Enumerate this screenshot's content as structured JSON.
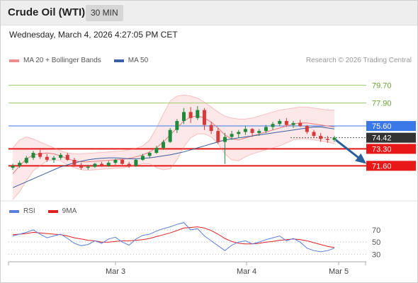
{
  "header": {
    "title": "Crude Oil (WTI)",
    "timeframe": "30 MIN",
    "datetime": "Wednesday, March 4, 2026 4:27:05 PM CET"
  },
  "legend_main": [
    {
      "label": "MA 20 + Bollinger Bands",
      "color": "#f08c8c"
    },
    {
      "label": "MA 50",
      "color": "#3a5fa0"
    }
  ],
  "credit": "Research © 2026 Trading Central",
  "legend_rsi": [
    {
      "label": "RSI",
      "color": "#5b7fe0"
    },
    {
      "label": "9MA",
      "color": "#e02020"
    }
  ],
  "colors": {
    "up": "#1f8a3b",
    "down": "#d63a3a",
    "resistance": "#99cc66",
    "support": "#e81818",
    "pivot": "#3a78e8",
    "current": "#333333",
    "arrow": "#2a5f9e"
  },
  "chart_data": [
    {
      "type": "line",
      "title": "",
      "ylim": [
        68.5,
        81.5
      ],
      "x_ticks": [
        "Mar 3",
        "Mar 4",
        "Mar 5"
      ],
      "levels": [
        {
          "label": "79.70",
          "value": 79.7,
          "kind": "resistance"
        },
        {
          "label": "77.90",
          "value": 77.9,
          "kind": "resistance"
        },
        {
          "label": "75.60",
          "value": 75.6,
          "kind": "pivot"
        },
        {
          "label": "74.42",
          "value": 74.42,
          "kind": "current"
        },
        {
          "label": "73.30",
          "value": 73.3,
          "kind": "support"
        },
        {
          "label": "71.60",
          "value": 71.6,
          "kind": "support"
        }
      ],
      "series": [
        {
          "name": "MA 50",
          "values": [
            69.4,
            69.7,
            70.0,
            70.3,
            70.6,
            70.9,
            71.2,
            71.5,
            71.7,
            71.9,
            72.05,
            72.2,
            72.3,
            72.35,
            72.4,
            72.4,
            72.35,
            72.3,
            72.3,
            72.35,
            72.4,
            72.5,
            72.6,
            72.7,
            72.85,
            73.0,
            73.2,
            73.4,
            73.6,
            73.8,
            74.0,
            74.2,
            74.3,
            74.4,
            74.5,
            74.6,
            74.7,
            74.8,
            74.9,
            75.0,
            75.1,
            75.2,
            75.3,
            75.4,
            75.5,
            75.5,
            75.4,
            75.3
          ]
        },
        {
          "name": "MA 20",
          "values": [
            70.8,
            71.6,
            72.3,
            72.7,
            72.8,
            72.9,
            72.8,
            72.6,
            72.3,
            72.1,
            72.0,
            72.0,
            72.05,
            72.1,
            72.15,
            72.2,
            72.25,
            72.35,
            72.5,
            72.7,
            73.0,
            73.4,
            74.0,
            74.7,
            75.4,
            76.1,
            76.5,
            76.6,
            76.4,
            76.0,
            75.4,
            74.7,
            74.3,
            74.2,
            74.4,
            74.6,
            74.8,
            75.0,
            75.2,
            75.4,
            75.6,
            75.8,
            75.9,
            75.9,
            75.8,
            75.7,
            75.6,
            75.5
          ]
        },
        {
          "name": "BB upper",
          "values": [
            73.4,
            74.2,
            74.5,
            74.3,
            74.0,
            73.7,
            73.4,
            73.1,
            72.9,
            72.8,
            72.8,
            72.85,
            72.9,
            72.95,
            73.0,
            73.05,
            73.1,
            73.2,
            73.35,
            73.6,
            74.2,
            75.4,
            76.8,
            78.1,
            78.6,
            78.7,
            78.6,
            78.4,
            78.0,
            77.5,
            77.0,
            76.6,
            76.4,
            76.3,
            76.3,
            76.4,
            76.6,
            76.8,
            77.0,
            77.2,
            77.3,
            77.4,
            77.5,
            77.5,
            77.4,
            77.3,
            77.2,
            77.2
          ]
        },
        {
          "name": "BB lower",
          "values": [
            68.2,
            69.0,
            70.1,
            71.1,
            71.6,
            72.1,
            72.2,
            72.1,
            71.7,
            71.4,
            71.2,
            71.15,
            71.2,
            71.25,
            71.3,
            71.35,
            71.4,
            71.5,
            71.65,
            71.8,
            71.8,
            71.4,
            71.2,
            71.3,
            72.2,
            73.5,
            74.4,
            74.8,
            74.8,
            74.5,
            73.8,
            72.8,
            72.2,
            72.1,
            72.5,
            72.8,
            73.0,
            73.2,
            73.4,
            73.6,
            73.9,
            74.2,
            74.3,
            74.3,
            74.2,
            74.1,
            74.0,
            73.8
          ]
        }
      ],
      "candles": [
        [
          71.4,
          71.8,
          71.2,
          71.6
        ],
        [
          71.6,
          72.1,
          71.4,
          71.9
        ],
        [
          71.9,
          72.6,
          71.8,
          72.4
        ],
        [
          72.4,
          73.1,
          72.2,
          72.9
        ],
        [
          72.9,
          73.2,
          72.3,
          72.5
        ],
        [
          72.5,
          72.8,
          72.0,
          72.2
        ],
        [
          72.2,
          72.6,
          71.9,
          72.4
        ],
        [
          72.4,
          72.9,
          72.2,
          72.7
        ],
        [
          72.7,
          72.9,
          72.1,
          72.2
        ],
        [
          72.2,
          72.4,
          71.5,
          71.7
        ],
        [
          71.7,
          71.9,
          71.2,
          71.4
        ],
        [
          71.4,
          71.7,
          71.2,
          71.5
        ],
        [
          71.5,
          71.9,
          71.4,
          71.8
        ],
        [
          71.8,
          72.0,
          71.5,
          71.6
        ],
        [
          71.6,
          72.1,
          71.5,
          71.9
        ],
        [
          71.9,
          72.3,
          71.7,
          72.2
        ],
        [
          72.2,
          72.3,
          71.7,
          71.8
        ],
        [
          71.8,
          72.0,
          71.4,
          71.6
        ],
        [
          71.6,
          72.3,
          71.5,
          72.2
        ],
        [
          72.2,
          72.8,
          72.1,
          72.6
        ],
        [
          72.6,
          73.0,
          72.4,
          72.9
        ],
        [
          72.9,
          73.6,
          72.8,
          73.4
        ],
        [
          73.4,
          74.2,
          73.2,
          74.0
        ],
        [
          74.0,
          75.4,
          73.9,
          75.2
        ],
        [
          75.2,
          76.3,
          74.9,
          76.1
        ],
        [
          76.1,
          77.4,
          75.8,
          77.0
        ],
        [
          77.0,
          77.5,
          75.9,
          76.4
        ],
        [
          76.4,
          77.6,
          76.2,
          77.2
        ],
        [
          77.2,
          77.4,
          75.2,
          75.7
        ],
        [
          75.7,
          76.0,
          74.8,
          75.1
        ],
        [
          75.1,
          75.4,
          73.8,
          74.0
        ],
        [
          74.0,
          74.9,
          71.8,
          74.5
        ],
        [
          74.5,
          75.1,
          74.2,
          74.8
        ],
        [
          74.8,
          75.2,
          74.4,
          75.0
        ],
        [
          75.0,
          75.6,
          74.7,
          75.3
        ],
        [
          75.3,
          75.4,
          74.5,
          74.9
        ],
        [
          74.9,
          75.3,
          74.6,
          75.1
        ],
        [
          75.1,
          75.7,
          74.9,
          75.5
        ],
        [
          75.5,
          76.0,
          75.2,
          75.8
        ],
        [
          75.8,
          76.3,
          75.6,
          76.1
        ],
        [
          76.1,
          76.4,
          75.5,
          75.7
        ],
        [
          75.7,
          76.1,
          75.4,
          75.9
        ],
        [
          75.9,
          76.2,
          75.5,
          75.6
        ],
        [
          75.6,
          75.7,
          74.8,
          75.0
        ],
        [
          75.0,
          75.2,
          74.4,
          74.6
        ],
        [
          74.6,
          74.9,
          74.0,
          74.3
        ],
        [
          74.3,
          74.6,
          73.9,
          74.2
        ],
        [
          74.2,
          74.6,
          74.0,
          74.42
        ]
      ]
    },
    {
      "type": "line",
      "title": "",
      "ylim": [
        20,
        85
      ],
      "y_ticks": [
        70,
        50,
        30
      ],
      "series": [
        {
          "name": "RSI",
          "values": [
            60,
            63,
            66,
            70,
            63,
            57,
            60,
            63,
            56,
            48,
            44,
            46,
            52,
            48,
            55,
            58,
            50,
            45,
            55,
            61,
            63,
            68,
            72,
            75,
            79,
            82,
            70,
            72,
            60,
            52,
            44,
            36,
            45,
            50,
            52,
            47,
            50,
            54,
            57,
            60,
            52,
            56,
            50,
            40,
            36,
            34,
            36,
            40
          ]
        },
        {
          "name": "9MA",
          "values": [
            62,
            63,
            64,
            66,
            65,
            64,
            63,
            62,
            60,
            57,
            55,
            53,
            52,
            50,
            50,
            51,
            52,
            52,
            53,
            54,
            56,
            59,
            62,
            65,
            69,
            73,
            74,
            75,
            73,
            69,
            63,
            56,
            51,
            48,
            47,
            47,
            48,
            50,
            51,
            53,
            54,
            55,
            54,
            52,
            49,
            46,
            43,
            41
          ]
        }
      ]
    }
  ]
}
